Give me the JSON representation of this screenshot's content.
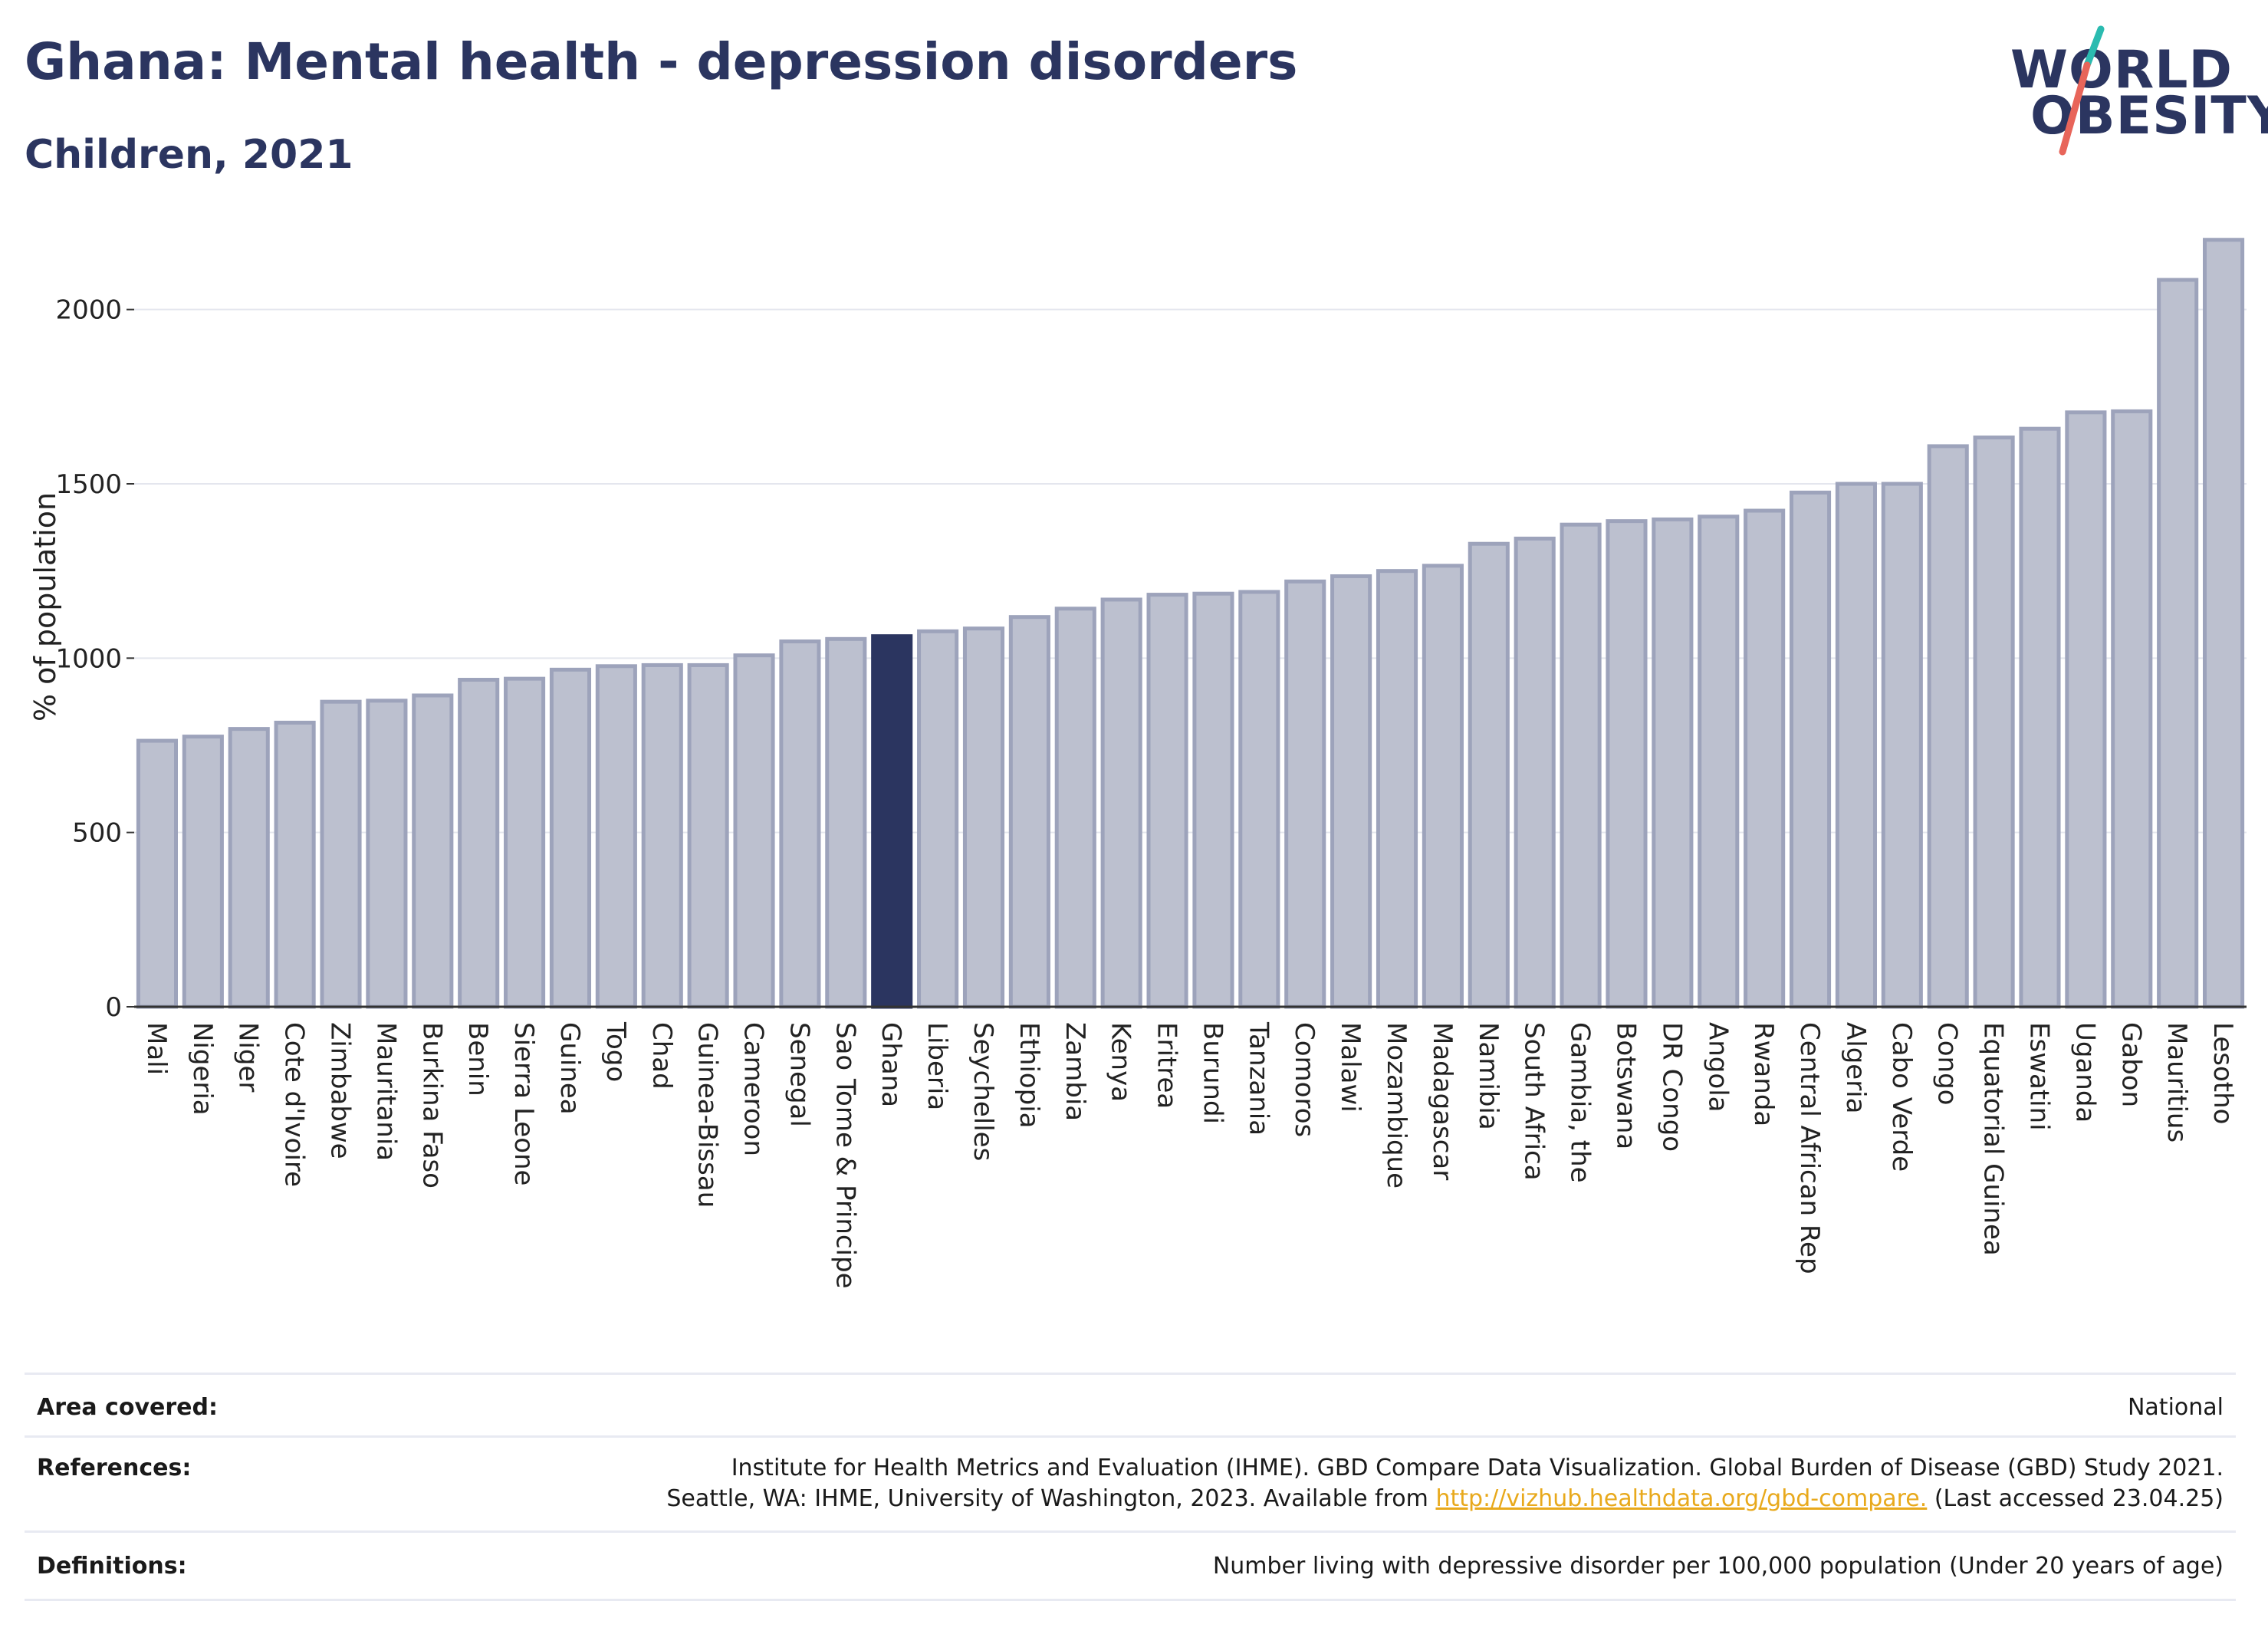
{
  "header": {
    "title": "Ghana: Mental health - depression disorders",
    "subtitle": "Children, 2021"
  },
  "logo": {
    "line1": "WORLD",
    "line2": "OBESITY",
    "colors": {
      "navy": "#2b3560",
      "teal": "#2bbbb0",
      "coral": "#e8655a"
    }
  },
  "chart_data": {
    "type": "bar",
    "ylabel": "% of population",
    "ylim": [
      0,
      2250
    ],
    "yticks": [
      0,
      500,
      1000,
      1500,
      2000
    ],
    "grid": true,
    "highlight": "Ghana",
    "colors": {
      "highlight": "#2b3560",
      "bar": "#bcc0cf",
      "bar_border": "#9da3bb",
      "grid": "#e4e6ee"
    },
    "categories": [
      "Mali",
      "Nigeria",
      "Niger",
      "Cote d'Ivoire",
      "Zimbabwe",
      "Mauritania",
      "Burkina Faso",
      "Benin",
      "Sierra Leone",
      "Guinea",
      "Togo",
      "Chad",
      "Guinea-Bissau",
      "Cameroon",
      "Senegal",
      "Sao Tome & Principe",
      "Ghana",
      "Liberia",
      "Seychelles",
      "Ethiopia",
      "Zambia",
      "Kenya",
      "Eritrea",
      "Burundi",
      "Tanzania",
      "Comoros",
      "Malawi",
      "Mozambique",
      "Madagascar",
      "Namibia",
      "South Africa",
      "Gambia, the",
      "Botswana",
      "DR Congo",
      "Angola",
      "Rwanda",
      "Central African Rep",
      "Algeria",
      "Cabo Verde",
      "Congo",
      "Equatorial Guinea",
      "Eswatini",
      "Uganda",
      "Gabon",
      "Mauritius",
      "Lesotho"
    ],
    "values": [
      763,
      775,
      797,
      815,
      875,
      878,
      893,
      938,
      941,
      967,
      977,
      980,
      980,
      1008,
      1048,
      1055,
      1063,
      1077,
      1085,
      1118,
      1142,
      1168,
      1182,
      1185,
      1190,
      1220,
      1235,
      1250,
      1265,
      1328,
      1343,
      1383,
      1393,
      1398,
      1406,
      1423,
      1475,
      1500,
      1500,
      1608,
      1633,
      1658,
      1705,
      1708,
      2085,
      2200
    ]
  },
  "footer": {
    "area_label": "Area covered:",
    "area_value": "National",
    "references_label": "References:",
    "references_line1": "Institute for Health Metrics and Evaluation (IHME). GBD Compare Data Visualization. Global Burden of Disease (GBD) Study 2021.",
    "references_line2_prefix": "Seattle, WA: IHME, University of Washington, 2023. Available from",
    "references_link": "http://vizhub.healthdata.org/gbd-compare.",
    "references_line2_suffix": "(Last accessed 23.04.25)",
    "definitions_label": "Definitions:",
    "definitions_value": "Number living with depressive disorder per 100,000 population (Under 20 years of age)"
  }
}
